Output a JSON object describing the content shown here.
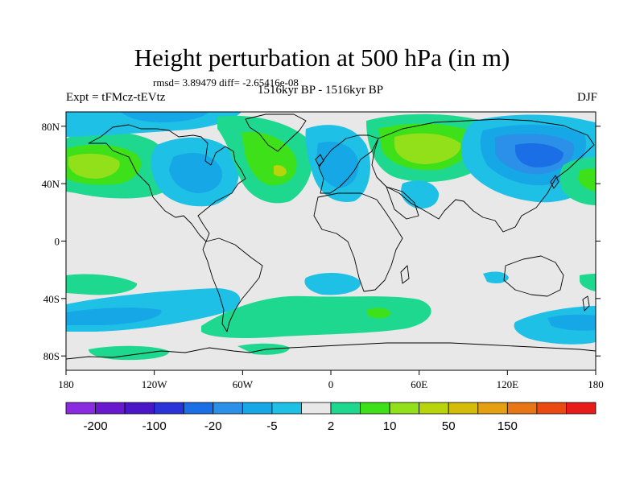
{
  "title": "Height perturbation at 500 hPa (in m)",
  "stats": "rmsd= 3.89479 diff= -2.65416e-08",
  "left_label": "Expt = tFMcz-tEVtz",
  "center_label": "1516kyr BP - 1516kyr BP",
  "right_label": "DJF",
  "map": {
    "projection": "cylindrical-equidistant",
    "lon_range": [
      -180,
      180
    ],
    "lat_range": [
      -90,
      90
    ],
    "background_color": "#e8e8e8",
    "coastline_color": "#000000",
    "lat_ticks": [
      {
        "value": 80,
        "label": "80N"
      },
      {
        "value": 40,
        "label": "40N"
      },
      {
        "value": 0,
        "label": "0"
      },
      {
        "value": -40,
        "label": "40S"
      },
      {
        "value": -80,
        "label": "80S"
      }
    ],
    "lon_ticks": [
      {
        "value": -180,
        "label": "180"
      },
      {
        "value": -120,
        "label": "120W"
      },
      {
        "value": -60,
        "label": "60W"
      },
      {
        "value": 0,
        "label": "0"
      },
      {
        "value": 60,
        "label": "60E"
      },
      {
        "value": 120,
        "label": "120E"
      },
      {
        "value": 180,
        "label": "180"
      }
    ],
    "anomalies": [
      {
        "lon": -155,
        "lat": 48,
        "level": 10
      },
      {
        "lon": -100,
        "lat": 40,
        "level": -5
      },
      {
        "lon": -40,
        "lat": 58,
        "level": 10
      },
      {
        "lon": -35,
        "lat": 45,
        "level": 50
      },
      {
        "lon": -5,
        "lat": 50,
        "level": -5
      },
      {
        "lon": 20,
        "lat": 60,
        "level": -20
      },
      {
        "lon": 65,
        "lat": 60,
        "level": 10
      },
      {
        "lon": 125,
        "lat": 58,
        "level": -100
      },
      {
        "lon": 175,
        "lat": 42,
        "level": 10
      },
      {
        "lon": -160,
        "lat": -30,
        "level": 2
      },
      {
        "lon": -160,
        "lat": -60,
        "level": -5
      },
      {
        "lon": -10,
        "lat": -30,
        "level": -5
      },
      {
        "lon": 30,
        "lat": -50,
        "level": 10
      },
      {
        "lon": 120,
        "lat": -62,
        "level": -5
      },
      {
        "lon": -120,
        "lat": -80,
        "level": 2
      }
    ]
  },
  "colorbar": {
    "colors": [
      "#8a2be2",
      "#6a18d0",
      "#4b16c8",
      "#2a33d8",
      "#1a6ee6",
      "#2a90e8",
      "#16a8e6",
      "#1ec0e6",
      "#e8e8e8",
      "#1ed890",
      "#3ee01a",
      "#92e01a",
      "#b8d40a",
      "#d6bc0a",
      "#e4a010",
      "#e87614",
      "#ea4a12",
      "#e81a1a"
    ],
    "labels": [
      {
        "after_box": 1,
        "text": "-200"
      },
      {
        "after_box": 3,
        "text": "-100"
      },
      {
        "after_box": 5,
        "text": "-20"
      },
      {
        "after_box": 7,
        "text": "-5"
      },
      {
        "after_box": 9,
        "text": "2"
      },
      {
        "after_box": 11,
        "text": "10"
      },
      {
        "after_box": 13,
        "text": "50"
      },
      {
        "after_box": 15,
        "text": "150"
      }
    ]
  }
}
